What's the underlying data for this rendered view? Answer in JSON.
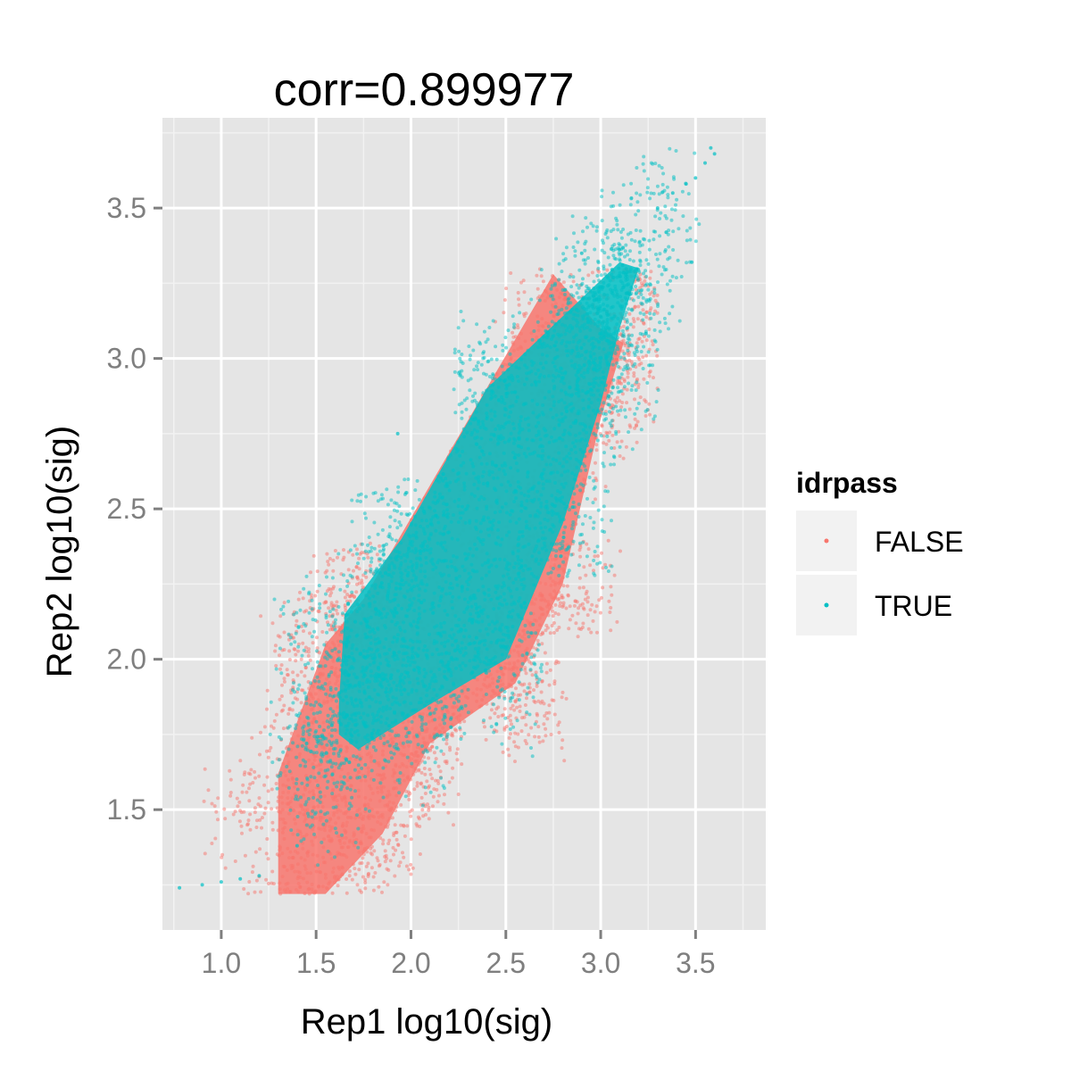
{
  "chart_data": {
    "type": "scatter",
    "title": "corr=0.899977",
    "xlabel": "Rep1 log10(sig)",
    "ylabel": "Rep2 log10(sig)",
    "xlim": [
      0.69,
      3.87
    ],
    "ylim": [
      1.1,
      3.8
    ],
    "x_ticks": [
      1.0,
      1.5,
      2.0,
      2.5,
      3.0,
      3.5
    ],
    "x_tick_labels": [
      "1.0",
      "1.5",
      "2.0",
      "2.5",
      "3.0",
      "3.5"
    ],
    "y_ticks": [
      1.5,
      2.0,
      2.5,
      3.0,
      3.5
    ],
    "y_tick_labels": [
      "1.5",
      "2.0",
      "2.5",
      "3.0",
      "3.5"
    ],
    "grid": true,
    "legend": {
      "title": "idrpass",
      "position": "right",
      "entries": [
        {
          "label": "FALSE",
          "color": "#F8766D"
        },
        {
          "label": "TRUE",
          "color": "#00BFC4"
        }
      ]
    },
    "colors": {
      "FALSE": "#F8766D",
      "TRUE": "#00BFC4",
      "panel": "#E5E5E5",
      "grid": "#FFFFFF"
    },
    "series": [
      {
        "name": "FALSE",
        "color": "#F8766D",
        "dense_region": [
          [
            1.3,
            1.22
          ],
          [
            1.55,
            1.22
          ],
          [
            1.85,
            1.42
          ],
          [
            2.1,
            1.72
          ],
          [
            2.55,
            1.92
          ],
          [
            2.8,
            2.25
          ],
          [
            3.0,
            2.8
          ],
          [
            3.12,
            3.05
          ],
          [
            3.0,
            3.1
          ],
          [
            2.75,
            3.28
          ],
          [
            1.75,
            2.2
          ],
          [
            1.55,
            2.05
          ],
          [
            1.3,
            1.62
          ]
        ],
        "sparse_extent": {
          "x": [
            0.72,
            3.3
          ],
          "y": [
            1.22,
            3.3
          ]
        }
      },
      {
        "name": "TRUE",
        "color": "#00BFC4",
        "dense_region": [
          [
            1.62,
            1.75
          ],
          [
            1.72,
            1.7
          ],
          [
            2.1,
            1.85
          ],
          [
            2.5,
            2.0
          ],
          [
            2.8,
            2.45
          ],
          [
            3.0,
            2.85
          ],
          [
            3.1,
            3.1
          ],
          [
            3.2,
            3.3
          ],
          [
            3.1,
            3.32
          ],
          [
            2.9,
            3.2
          ],
          [
            2.4,
            2.9
          ],
          [
            1.95,
            2.4
          ],
          [
            1.65,
            2.15
          ],
          [
            1.62,
            1.85
          ]
        ],
        "sparse_extent": {
          "x": [
            0.78,
            3.6
          ],
          "y": [
            1.23,
            3.7
          ]
        },
        "extra_points": [
          [
            0.78,
            1.24
          ],
          [
            0.9,
            1.25
          ],
          [
            1.0,
            1.26
          ],
          [
            1.1,
            1.27
          ],
          [
            1.2,
            1.28
          ],
          [
            1.4,
            1.38
          ],
          [
            1.93,
            2.75
          ],
          [
            2.4,
            2.8
          ],
          [
            2.9,
            3.35
          ],
          [
            3.38,
            3.55
          ],
          [
            3.45,
            3.58
          ],
          [
            3.5,
            3.6
          ],
          [
            3.55,
            3.65
          ],
          [
            3.58,
            3.7
          ],
          [
            3.6,
            3.68
          ],
          [
            3.48,
            3.32
          ],
          [
            3.3,
            3.5
          ]
        ]
      }
    ]
  }
}
